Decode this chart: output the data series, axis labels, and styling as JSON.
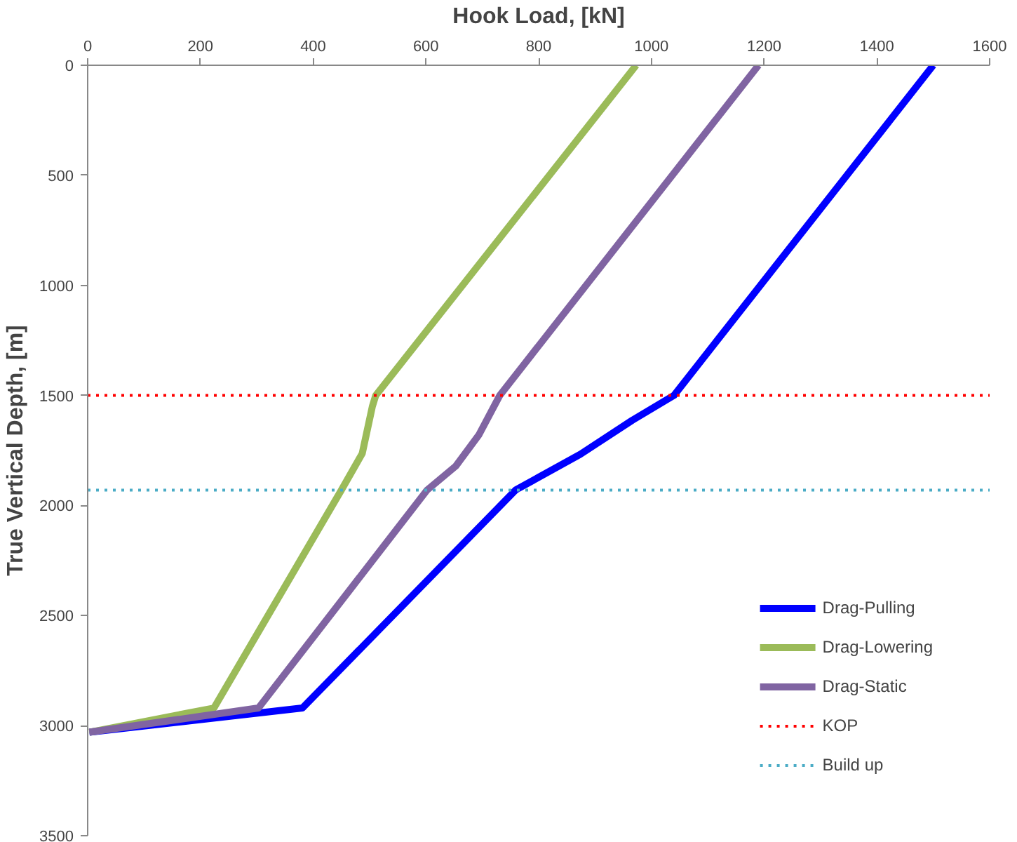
{
  "chart_data": {
    "type": "line",
    "xlabel": "Hook Load, [kN]",
    "ylabel": "True Vertical Depth, [m]",
    "xlim": [
      0,
      1600
    ],
    "xticks": [
      0,
      200,
      400,
      600,
      800,
      1000,
      1200,
      1400,
      1600
    ],
    "ylim": [
      3500,
      0
    ],
    "yticks": [
      0,
      500,
      1000,
      1500,
      2000,
      2500,
      3000,
      3500
    ],
    "grid": false,
    "legend": "bottom right",
    "line_style": "solid",
    "marker": "none",
    "series": [
      {
        "name": "Drag-Pulling",
        "color": "#0000ff",
        "x": [
          1500,
          1040,
          966,
          874,
          759,
          381,
          3
        ],
        "values": [
          0,
          1500,
          1613,
          1767,
          1930,
          2920,
          3030
        ]
      },
      {
        "name": "Drag-Lowering",
        "color": "#9bbb59",
        "x": [
          973,
          511,
          505,
          487,
          450,
          224,
          3
        ],
        "values": [
          0,
          1500,
          1550,
          1764,
          1930,
          2920,
          3030
        ]
      },
      {
        "name": "Drag-Static",
        "color": "#8064a2",
        "x": [
          1190,
          731,
          694,
          653,
          602,
          303,
          3
        ],
        "values": [
          0,
          1500,
          1679,
          1821,
          1930,
          2920,
          3030
        ]
      }
    ],
    "ref_lines": [
      {
        "axis": "y",
        "value": 1500,
        "label": "KOP",
        "color": "#ff0000",
        "line_style": "dotted"
      },
      {
        "axis": "y",
        "value": 1930,
        "label": "Build up",
        "color": "#4bacc6",
        "line_style": "dotted"
      }
    ]
  }
}
